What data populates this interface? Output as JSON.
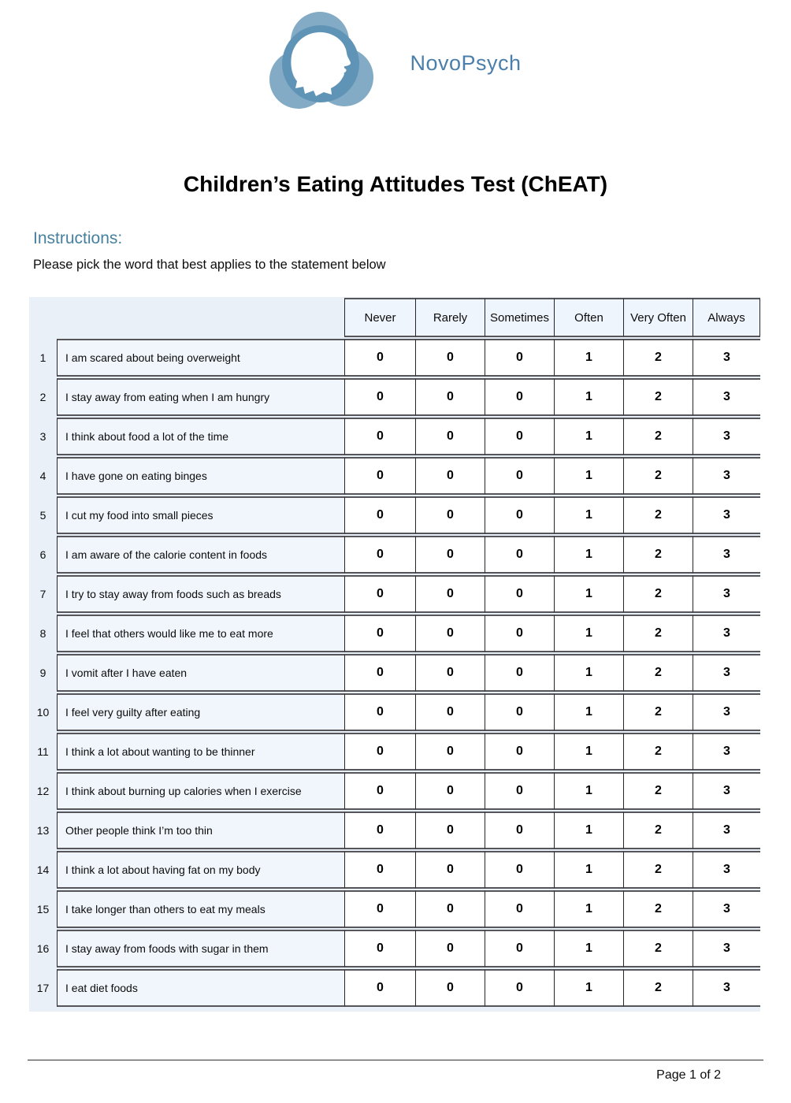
{
  "brand": {
    "name": "NovoPsych"
  },
  "title": "Children’s Eating Attitudes Test (ChEAT)",
  "instructions": {
    "label": "Instructions:",
    "text": "Please pick the word that best applies to the statement below"
  },
  "table": {
    "columns": [
      "Never",
      "Rarely",
      "Sometimes",
      "Often",
      "Very Often",
      "Always"
    ],
    "rows": [
      {
        "number": "1",
        "text": "I am scared about being overweight",
        "values": [
          "0",
          "0",
          "0",
          "1",
          "2",
          "3"
        ]
      },
      {
        "number": "2",
        "text": "I stay away from eating when I am hungry",
        "values": [
          "0",
          "0",
          "0",
          "1",
          "2",
          "3"
        ]
      },
      {
        "number": "3",
        "text": "I think about food a lot of the time",
        "values": [
          "0",
          "0",
          "0",
          "1",
          "2",
          "3"
        ]
      },
      {
        "number": "4",
        "text": "I have gone on eating binges",
        "values": [
          "0",
          "0",
          "0",
          "1",
          "2",
          "3"
        ]
      },
      {
        "number": "5",
        "text": "I cut my food into small pieces",
        "values": [
          "0",
          "0",
          "0",
          "1",
          "2",
          "3"
        ]
      },
      {
        "number": "6",
        "text": "I am aware of the calorie content in foods",
        "values": [
          "0",
          "0",
          "0",
          "1",
          "2",
          "3"
        ]
      },
      {
        "number": "7",
        "text": "I try to stay away from foods such as breads",
        "values": [
          "0",
          "0",
          "0",
          "1",
          "2",
          "3"
        ]
      },
      {
        "number": "8",
        "text": "I feel that others would like me to eat more",
        "values": [
          "0",
          "0",
          "0",
          "1",
          "2",
          "3"
        ]
      },
      {
        "number": "9",
        "text": "I vomit after I have eaten",
        "values": [
          "0",
          "0",
          "0",
          "1",
          "2",
          "3"
        ]
      },
      {
        "number": "10",
        "text": "I feel very guilty after eating",
        "values": [
          "0",
          "0",
          "0",
          "1",
          "2",
          "3"
        ]
      },
      {
        "number": "11",
        "text": "I think a lot about wanting to be thinner",
        "values": [
          "0",
          "0",
          "0",
          "1",
          "2",
          "3"
        ]
      },
      {
        "number": "12",
        "text": "I think about burning up calories when I exercise",
        "values": [
          "0",
          "0",
          "0",
          "1",
          "2",
          "3"
        ]
      },
      {
        "number": "13",
        "text": "Other people think I’m too thin",
        "values": [
          "0",
          "0",
          "0",
          "1",
          "2",
          "3"
        ]
      },
      {
        "number": "14",
        "text": "I think a lot about having fat on my body",
        "values": [
          "0",
          "0",
          "0",
          "1",
          "2",
          "3"
        ]
      },
      {
        "number": "15",
        "text": "I take longer than others to eat my meals",
        "values": [
          "0",
          "0",
          "0",
          "1",
          "2",
          "3"
        ]
      },
      {
        "number": "16",
        "text": "I stay away from foods with sugar in them",
        "values": [
          "0",
          "0",
          "0",
          "1",
          "2",
          "3"
        ]
      },
      {
        "number": "17",
        "text": "I eat diet foods",
        "values": [
          "0",
          "0",
          "0",
          "1",
          "2",
          "3"
        ]
      }
    ]
  },
  "footer": {
    "page_label": "Page 1 of 2"
  },
  "colors": {
    "brand": "#4a7fab",
    "accent": "#47809f",
    "table_bg": "#e9f0f8",
    "cell_header_bg": "#eff5fc",
    "cell_question_bg": "#f1f6fc",
    "logo_lobe": "#84abc5",
    "logo_ring": "#6094b6"
  }
}
